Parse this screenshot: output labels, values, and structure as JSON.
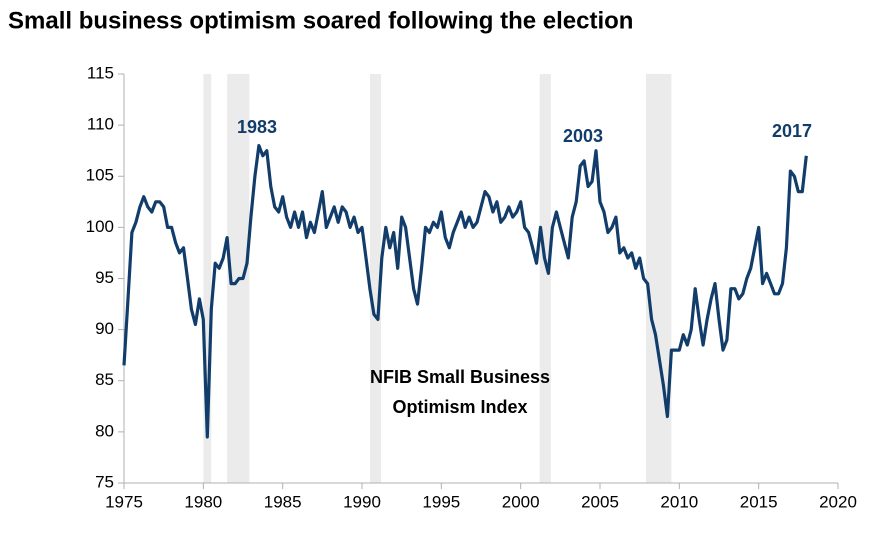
{
  "chart_data": {
    "type": "line",
    "title": "Small business optimism soared following the election",
    "annotations": [
      "1983",
      "2003",
      "2017",
      "NFIB Small Business",
      "Optimism Index"
    ],
    "xlim": [
      1975,
      2020
    ],
    "xticks": [
      1975,
      1980,
      1985,
      1990,
      1995,
      2000,
      2005,
      2010,
      2015,
      2020
    ],
    "ylim": [
      75,
      115
    ],
    "yticks": [
      75,
      80,
      85,
      90,
      95,
      100,
      105,
      110,
      115
    ],
    "grid": false,
    "shaded_periods": [
      [
        1980.0,
        1980.5
      ],
      [
        1981.5,
        1982.9
      ],
      [
        1990.5,
        1991.2
      ],
      [
        2001.2,
        2001.9
      ],
      [
        2007.9,
        2009.5
      ]
    ],
    "shade_color": "#ebebeb",
    "series": [
      {
        "name": "NFIB Small Business Optimism Index",
        "color": "#123d6b",
        "x": [
          1975,
          1975.25,
          1975.5,
          1975.75,
          1976,
          1976.25,
          1976.5,
          1976.75,
          1977,
          1977.25,
          1977.5,
          1977.75,
          1978,
          1978.25,
          1978.5,
          1978.75,
          1979,
          1979.25,
          1979.5,
          1979.75,
          1980,
          1980.25,
          1980.5,
          1980.75,
          1981,
          1981.25,
          1981.5,
          1981.75,
          1982,
          1982.25,
          1982.5,
          1982.75,
          1983,
          1983.25,
          1983.5,
          1983.75,
          1984,
          1984.25,
          1984.5,
          1984.75,
          1985,
          1985.25,
          1985.5,
          1985.75,
          1986,
          1986.25,
          1986.5,
          1986.75,
          1987,
          1987.25,
          1987.5,
          1987.75,
          1988,
          1988.25,
          1988.5,
          1988.75,
          1989,
          1989.25,
          1989.5,
          1989.75,
          1990,
          1990.25,
          1990.5,
          1990.75,
          1991,
          1991.25,
          1991.5,
          1991.75,
          1992,
          1992.25,
          1992.5,
          1992.75,
          1993,
          1993.25,
          1993.5,
          1993.75,
          1994,
          1994.25,
          1994.5,
          1994.75,
          1995,
          1995.25,
          1995.5,
          1995.75,
          1996,
          1996.25,
          1996.5,
          1996.75,
          1997,
          1997.25,
          1997.5,
          1997.75,
          1998,
          1998.25,
          1998.5,
          1998.75,
          1999,
          1999.25,
          1999.5,
          1999.75,
          2000,
          2000.25,
          2000.5,
          2000.75,
          2001,
          2001.25,
          2001.5,
          2001.75,
          2002,
          2002.25,
          2002.5,
          2002.75,
          2003,
          2003.25,
          2003.5,
          2003.75,
          2004,
          2004.25,
          2004.5,
          2004.75,
          2005,
          2005.25,
          2005.5,
          2005.75,
          2006,
          2006.25,
          2006.5,
          2006.75,
          2007,
          2007.25,
          2007.5,
          2007.75,
          2008,
          2008.25,
          2008.5,
          2008.75,
          2009,
          2009.25,
          2009.5,
          2009.75,
          2010,
          2010.25,
          2010.5,
          2010.75,
          2011,
          2011.25,
          2011.5,
          2011.75,
          2012,
          2012.25,
          2012.5,
          2012.75,
          2013,
          2013.25,
          2013.5,
          2013.75,
          2014,
          2014.25,
          2014.5,
          2014.75,
          2015,
          2015.25,
          2015.5,
          2015.75,
          2016,
          2016.25,
          2016.5,
          2016.75,
          2017,
          2017.25,
          2017.5,
          2017.75,
          2018
        ],
        "values": [
          86.5,
          93,
          99.5,
          100.5,
          102,
          103,
          102,
          101.5,
          102.5,
          102.5,
          102,
          100,
          100,
          98.5,
          97.5,
          98,
          95,
          92,
          90.5,
          93,
          91,
          79.5,
          92,
          96.5,
          96,
          97,
          99,
          94.5,
          94.5,
          95,
          95,
          96.5,
          101,
          105,
          108,
          107,
          107.5,
          104,
          102,
          101.5,
          103,
          101,
          100,
          101.5,
          100,
          101.5,
          99,
          100.5,
          99.5,
          101.5,
          103.5,
          100,
          101,
          102,
          100.5,
          102,
          101.5,
          100,
          101,
          99.5,
          100,
          97,
          94,
          91.5,
          91,
          97,
          100,
          98,
          99.5,
          96,
          101,
          100,
          97,
          94,
          92.5,
          96,
          100,
          99.5,
          100.5,
          100,
          101.5,
          99,
          98,
          99.5,
          100.5,
          101.5,
          100,
          101,
          100,
          100.5,
          102,
          103.5,
          103,
          101.5,
          102.5,
          100.5,
          101,
          102,
          101,
          101.5,
          102.5,
          100,
          99.5,
          98,
          96.5,
          100,
          97,
          95.5,
          100,
          101.5,
          100,
          98.5,
          97,
          101,
          102.5,
          106,
          106.5,
          104,
          104.5,
          107.5,
          102.5,
          101.5,
          99.5,
          100,
          101,
          97.5,
          98,
          97,
          97.5,
          96,
          97,
          95,
          94.5,
          91,
          89.5,
          87,
          84.5,
          81.5,
          88,
          88,
          88,
          89.5,
          88.5,
          90,
          94,
          91,
          88.5,
          91,
          93,
          94.5,
          91,
          88,
          89,
          94,
          94,
          93,
          93.5,
          95,
          96,
          98,
          100,
          94.5,
          95.5,
          94.5,
          93.5,
          93.5,
          94.5,
          98,
          105.5,
          105,
          103.5,
          103.5,
          107
        ]
      }
    ]
  }
}
